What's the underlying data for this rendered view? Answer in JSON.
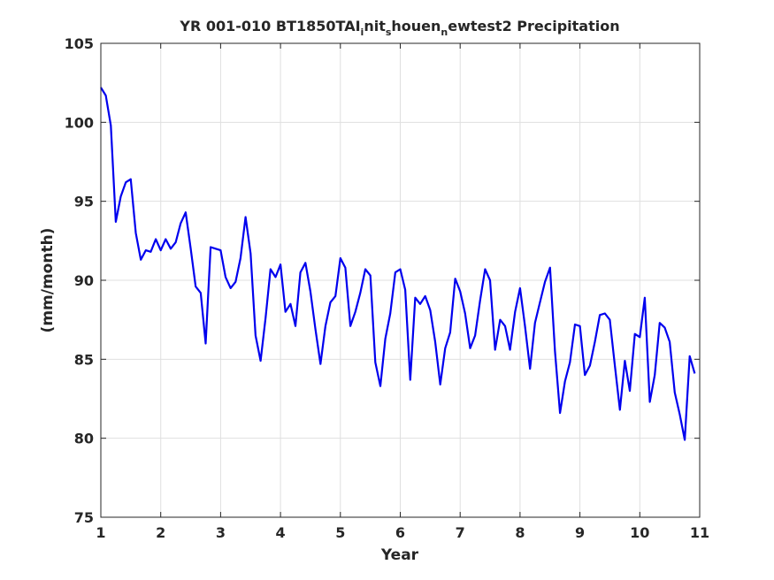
{
  "chart_data": {
    "type": "line",
    "title": {
      "prefix": "YR 001-010 BT1850TAI",
      "sub1": "i",
      "mid1": "nit",
      "sub2": "s",
      "mid2": "houen",
      "sub3": "n",
      "suffix": "ewtest2 Precipitation"
    },
    "xlabel": "Year",
    "ylabel": "(mm/month)",
    "xlim": [
      1,
      11
    ],
    "ylim": [
      75,
      105
    ],
    "xticks": [
      1,
      2,
      3,
      4,
      5,
      6,
      7,
      8,
      9,
      10,
      11
    ],
    "xtick_labels": [
      "1",
      "2",
      "3",
      "4",
      "5",
      "6",
      "7",
      "8",
      "9",
      "10",
      "11"
    ],
    "yticks": [
      75,
      80,
      85,
      90,
      95,
      100,
      105
    ],
    "ytick_labels": [
      "75",
      "80",
      "85",
      "90",
      "95",
      "100",
      "105"
    ],
    "grid": true,
    "line_color": "#0000ee",
    "series": [
      {
        "x": [
          1.0,
          1.083,
          1.167,
          1.25,
          1.333,
          1.417,
          1.5,
          1.583,
          1.667,
          1.75,
          1.833,
          1.917,
          2.0,
          2.083,
          2.167,
          2.25,
          2.333,
          2.417,
          2.5,
          2.583,
          2.667,
          2.75,
          2.833,
          2.917,
          3.0,
          3.083,
          3.167,
          3.25,
          3.333,
          3.417,
          3.5,
          3.583,
          3.667,
          3.75,
          3.833,
          3.917,
          4.0,
          4.083,
          4.167,
          4.25,
          4.333,
          4.417,
          4.5,
          4.583,
          4.667,
          4.75,
          4.833,
          4.917,
          5.0,
          5.083,
          5.167,
          5.25,
          5.333,
          5.417,
          5.5,
          5.583,
          5.667,
          5.75,
          5.833,
          5.917,
          6.0,
          6.083,
          6.167,
          6.25,
          6.333,
          6.417,
          6.5,
          6.583,
          6.667,
          6.75,
          6.833,
          6.917,
          7.0,
          7.083,
          7.167,
          7.25,
          7.333,
          7.417,
          7.5,
          7.583,
          7.667,
          7.75,
          7.833,
          7.917,
          8.0,
          8.083,
          8.167,
          8.25,
          8.333,
          8.417,
          8.5,
          8.583,
          8.667,
          8.75,
          8.833,
          8.917,
          9.0,
          9.083,
          9.167,
          9.25,
          9.333,
          9.417,
          9.5,
          9.583,
          9.667,
          9.75,
          9.833,
          9.917,
          10.0,
          10.083,
          10.167,
          10.25,
          10.333,
          10.417,
          10.5,
          10.583,
          10.667,
          10.75,
          10.833,
          10.917
        ],
        "values": [
          102.2,
          101.7,
          99.8,
          93.7,
          95.3,
          96.2,
          96.4,
          93.0,
          91.3,
          91.9,
          91.8,
          92.6,
          91.9,
          92.6,
          92.0,
          92.4,
          93.6,
          94.3,
          92.0,
          89.6,
          89.2,
          86.0,
          92.1,
          92.0,
          91.9,
          90.2,
          89.5,
          89.9,
          91.4,
          94.0,
          91.7,
          86.5,
          84.9,
          87.6,
          90.7,
          90.2,
          91.0,
          88.0,
          88.5,
          87.1,
          90.5,
          91.1,
          89.3,
          86.9,
          84.7,
          87.1,
          88.6,
          89.0,
          91.4,
          90.8,
          87.1,
          88.0,
          89.2,
          90.7,
          90.3,
          84.8,
          83.3,
          86.3,
          87.9,
          90.5,
          90.7,
          89.4,
          83.7,
          88.9,
          88.5,
          89.0,
          88.1,
          86.1,
          83.4,
          85.7,
          86.7,
          90.1,
          89.3,
          87.9,
          85.7,
          86.5,
          88.7,
          90.7,
          90.0,
          85.6,
          87.5,
          87.1,
          85.6,
          88.0,
          89.5,
          87.1,
          84.4,
          87.3,
          88.6,
          89.9,
          90.8,
          85.5,
          81.6,
          83.6,
          84.8,
          87.2,
          87.1,
          84.0,
          84.6,
          86.1,
          87.8,
          87.9,
          87.5,
          84.6,
          81.8,
          84.9,
          83.0,
          86.6,
          86.4,
          88.9,
          82.3,
          84.0,
          87.3,
          87.0,
          86.1,
          82.9,
          81.5,
          79.9,
          85.2,
          84.1
        ]
      }
    ]
  }
}
